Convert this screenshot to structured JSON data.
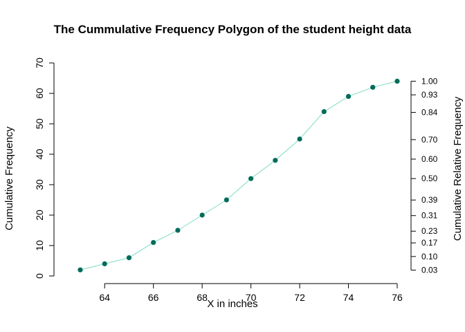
{
  "chart_data": {
    "type": "line",
    "title": "The Cummulative Frequency Polygon of the student height data",
    "xlabel": "X in inches",
    "ylabel": "Cumulative Frequency",
    "y2label": "Cumulative Relative Frequency",
    "xlim": [
      63,
      76
    ],
    "ylim": [
      0,
      70
    ],
    "x_ticks": [
      64,
      66,
      68,
      70,
      72,
      74,
      76
    ],
    "y_ticks": [
      0,
      10,
      20,
      30,
      40,
      50,
      60,
      70
    ],
    "y2_ticks": [
      0.03,
      0.1,
      0.17,
      0.23,
      0.31,
      0.39,
      0.5,
      0.6,
      0.7,
      0.84,
      0.93,
      1.0
    ],
    "y2_tick_labels": [
      "0.03",
      "0.10",
      "0.17",
      "0.23",
      "0.31",
      "0.39",
      "0.50",
      "0.60",
      "0.70",
      "0.84",
      "0.93",
      "1.00"
    ],
    "y2_max_frequency": 64,
    "grid": false,
    "line_color": "#7fdcc4",
    "point_color": "#006b5a",
    "series": [
      {
        "x": [
          63,
          64,
          65,
          66,
          67,
          68,
          69,
          70,
          71,
          72,
          73,
          74,
          75,
          76
        ],
        "y": [
          2,
          4,
          6,
          11,
          15,
          20,
          25,
          32,
          38,
          45,
          54,
          59,
          62,
          64
        ]
      }
    ]
  }
}
